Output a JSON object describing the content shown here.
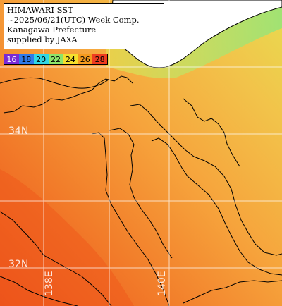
{
  "caption": {
    "line1": "HIMAWARI SST",
    "line2": "~2025/06/21(UTC) Week Comp.",
    "line3": "Kanagawa Prefecture",
    "line4": "supplied by JAXA"
  },
  "scale": [
    {
      "label": "16",
      "color": "#7a2ad6",
      "text_color": "#ffffff"
    },
    {
      "label": "18",
      "color": "#2f7ae8",
      "text_color": "#000000"
    },
    {
      "label": "20",
      "color": "#31d7e4",
      "text_color": "#000000"
    },
    {
      "label": "22",
      "color": "#8de36a",
      "text_color": "#000000"
    },
    {
      "label": "24",
      "color": "#f4df2d",
      "text_color": "#000000"
    },
    {
      "label": "26",
      "color": "#f59a1e",
      "text_color": "#000000"
    },
    {
      "label": "28",
      "color": "#ee3d20",
      "text_color": "#000000"
    }
  ],
  "grid_labels": {
    "lat_34": "34N",
    "lat_32": "32N",
    "lon_138": "138E",
    "lon_140": "140E"
  },
  "colors": {
    "land": "#ffffff",
    "coastline": "#000000",
    "grid": "#ffffff",
    "sst_warm_sw": "#ee5a1c",
    "sst_mid": "#f6a53c",
    "sst_cool_ne": "#e6e04a"
  }
}
